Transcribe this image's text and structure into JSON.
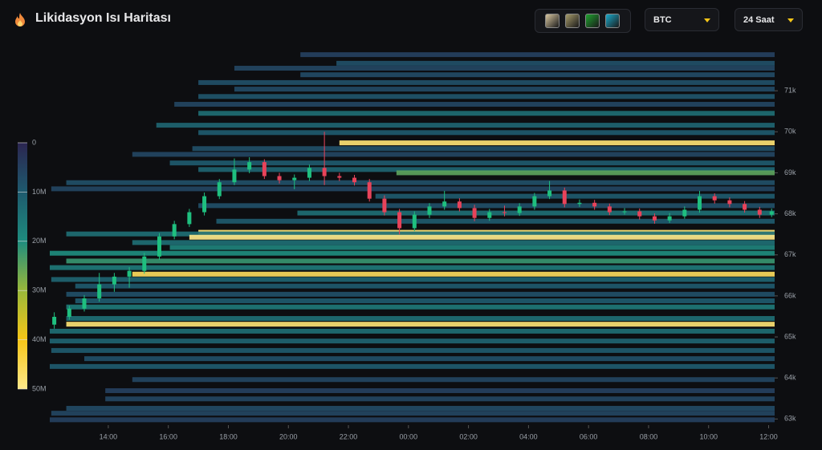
{
  "header": {
    "title": "Likidasyon Isı Haritası"
  },
  "controls": {
    "symbol": "BTC",
    "period": "24 Saat",
    "palettes": [
      "#d9c7a0",
      "#a69b6a",
      "#1fa12f",
      "#1aa8c9"
    ]
  },
  "chart_data": {
    "type": "liquidation-heatmap",
    "xlim": [
      12.05,
      36.2
    ],
    "xticks": [
      {
        "value": 14,
        "label": "14:00"
      },
      {
        "value": 16,
        "label": "16:00"
      },
      {
        "value": 18,
        "label": "18:00"
      },
      {
        "value": 20,
        "label": "20:00"
      },
      {
        "value": 22,
        "label": "22:00"
      },
      {
        "value": 24,
        "label": "00:00"
      },
      {
        "value": 26,
        "label": "02:00"
      },
      {
        "value": 28,
        "label": "04:00"
      },
      {
        "value": 30,
        "label": "06:00"
      },
      {
        "value": 32,
        "label": "08:00"
      },
      {
        "value": 34,
        "label": "10:00"
      },
      {
        "value": 36,
        "label": "12:00"
      }
    ],
    "ylim": [
      62850,
      72000
    ],
    "yticks": [
      {
        "value": 63000,
        "label": "63k"
      },
      {
        "value": 64000,
        "label": "64k"
      },
      {
        "value": 65000,
        "label": "65k"
      },
      {
        "value": 66000,
        "label": "66k"
      },
      {
        "value": 67000,
        "label": "67k"
      },
      {
        "value": 68000,
        "label": "68k"
      },
      {
        "value": 69000,
        "label": "69k"
      },
      {
        "value": 70000,
        "label": "70k"
      },
      {
        "value": 71000,
        "label": "71k"
      }
    ],
    "clim": [
      0,
      50000000
    ],
    "cticks": [
      0,
      {
        "value": 10000000,
        "label": "10M"
      },
      {
        "value": 20000000,
        "label": "20M"
      },
      {
        "value": 30000000,
        "label": "30M"
      },
      {
        "value": 40000000,
        "label": "40M"
      },
      {
        "value": 50000000,
        "label": "50M"
      }
    ],
    "colorscale": [
      "#2b2550",
      "#1e5a6e",
      "#1e8c7e",
      "#9ab83a",
      "#f5c518",
      "#fde88a"
    ],
    "up_color": "#1fbf7f",
    "down_color": "#e8435a",
    "bands": [
      {
        "price": 71880,
        "start": 20.4,
        "value": 5000000
      },
      {
        "price": 71670,
        "start": 21.6,
        "value": 8000000
      },
      {
        "price": 71550,
        "start": 18.2,
        "value": 6000000
      },
      {
        "price": 71390,
        "start": 20.4,
        "value": 7000000
      },
      {
        "price": 71200,
        "start": 17,
        "value": 8000000
      },
      {
        "price": 71040,
        "start": 18.2,
        "value": 7000000
      },
      {
        "price": 70860,
        "start": 17,
        "value": 9000000
      },
      {
        "price": 70670,
        "start": 16.2,
        "value": 6000000
      },
      {
        "price": 70450,
        "start": 17,
        "value": 14000000
      },
      {
        "price": 70160,
        "start": 15.6,
        "value": 12000000
      },
      {
        "price": 69980,
        "start": 17,
        "value": 10000000
      },
      {
        "price": 69730,
        "start": 21.7,
        "value": 48000000
      },
      {
        "price": 69590,
        "start": 16.8,
        "value": 8000000
      },
      {
        "price": 69450,
        "start": 14.8,
        "value": 6000000
      },
      {
        "price": 69240,
        "start": 16.05,
        "value": 10000000
      },
      {
        "price": 69080,
        "start": 17,
        "value": 12000000
      },
      {
        "price": 69000,
        "start": 23.6,
        "value": 25000000
      },
      {
        "price": 68760,
        "start": 12.6,
        "value": 8000000
      },
      {
        "price": 68610,
        "start": 12.1,
        "value": 6000000
      },
      {
        "price": 68430,
        "start": 22.9,
        "value": 10000000
      },
      {
        "price": 68200,
        "start": 17,
        "value": 8000000
      },
      {
        "price": 68020,
        "start": 20.3,
        "value": 14000000
      },
      {
        "price": 67820,
        "start": 17.6,
        "value": 10000000
      },
      {
        "price": 67550,
        "start": 17,
        "value": 48000000
      },
      {
        "price": 67510,
        "start": 12.6,
        "value": 14000000
      },
      {
        "price": 67430,
        "start": 16.7,
        "value": 50000000
      },
      {
        "price": 67300,
        "start": 14.8,
        "value": 14000000
      },
      {
        "price": 67180,
        "start": 16.05,
        "value": 18000000
      },
      {
        "price": 67040,
        "start": 12.05,
        "value": 20000000
      },
      {
        "price": 66850,
        "start": 12.6,
        "value": 22000000
      },
      {
        "price": 66690,
        "start": 12.05,
        "value": 16000000
      },
      {
        "price": 66530,
        "start": 14.8,
        "value": 46000000
      },
      {
        "price": 66400,
        "start": 12.1,
        "value": 12000000
      },
      {
        "price": 66240,
        "start": 12.9,
        "value": 10000000
      },
      {
        "price": 66040,
        "start": 12.6,
        "value": 8000000
      },
      {
        "price": 65880,
        "start": 12.9,
        "value": 10000000
      },
      {
        "price": 65730,
        "start": 12.6,
        "value": 16000000
      },
      {
        "price": 65310,
        "start": 12.6,
        "value": 48000000
      },
      {
        "price": 65450,
        "start": 12.6,
        "value": 14000000
      },
      {
        "price": 65140,
        "start": 12.05,
        "value": 14000000
      },
      {
        "price": 64900,
        "start": 12.05,
        "value": 12000000
      },
      {
        "price": 64670,
        "start": 12.1,
        "value": 10000000
      },
      {
        "price": 64470,
        "start": 13.2,
        "value": 8000000
      },
      {
        "price": 64280,
        "start": 12.05,
        "value": 10000000
      },
      {
        "price": 63960,
        "start": 14.8,
        "value": 6000000
      },
      {
        "price": 63690,
        "start": 13.9,
        "value": 5000000
      },
      {
        "price": 63490,
        "start": 13.9,
        "value": 6000000
      },
      {
        "price": 63260,
        "start": 12.6,
        "value": 7000000
      },
      {
        "price": 63140,
        "start": 12.1,
        "value": 6000000
      },
      {
        "price": 62980,
        "start": 12.05,
        "value": 5000000
      }
    ],
    "candles": [
      {
        "t": 12.2,
        "o": 65300,
        "h": 65600,
        "l": 65200,
        "c": 65490
      },
      {
        "t": 12.7,
        "o": 65490,
        "h": 65760,
        "l": 65420,
        "c": 65690
      },
      {
        "t": 13.2,
        "o": 65690,
        "h": 66020,
        "l": 65620,
        "c": 65940
      },
      {
        "t": 13.7,
        "o": 65940,
        "h": 66560,
        "l": 65860,
        "c": 66280
      },
      {
        "t": 14.2,
        "o": 66280,
        "h": 66560,
        "l": 66100,
        "c": 66470
      },
      {
        "t": 14.7,
        "o": 66470,
        "h": 66700,
        "l": 66200,
        "c": 66610
      },
      {
        "t": 15.2,
        "o": 66610,
        "h": 67050,
        "l": 66540,
        "c": 66960
      },
      {
        "t": 15.7,
        "o": 66960,
        "h": 67530,
        "l": 66880,
        "c": 67450
      },
      {
        "t": 16.2,
        "o": 67450,
        "h": 67830,
        "l": 67380,
        "c": 67750
      },
      {
        "t": 16.7,
        "o": 67750,
        "h": 68120,
        "l": 67680,
        "c": 68040
      },
      {
        "t": 17.2,
        "o": 68040,
        "h": 68520,
        "l": 67960,
        "c": 68430
      },
      {
        "t": 17.7,
        "o": 68430,
        "h": 68850,
        "l": 68360,
        "c": 68770
      },
      {
        "t": 18.2,
        "o": 68770,
        "h": 69350,
        "l": 68700,
        "c": 69080
      },
      {
        "t": 18.7,
        "o": 69080,
        "h": 69380,
        "l": 68990,
        "c": 69260
      },
      {
        "t": 19.2,
        "o": 69260,
        "h": 69330,
        "l": 68850,
        "c": 68920
      },
      {
        "t": 19.7,
        "o": 68920,
        "h": 69000,
        "l": 68740,
        "c": 68820
      },
      {
        "t": 20.2,
        "o": 68820,
        "h": 68960,
        "l": 68600,
        "c": 68880
      },
      {
        "t": 20.7,
        "o": 68880,
        "h": 69200,
        "l": 68800,
        "c": 69120
      },
      {
        "t": 21.2,
        "o": 69120,
        "h": 70000,
        "l": 68700,
        "c": 68920
      },
      {
        "t": 21.7,
        "o": 68920,
        "h": 69000,
        "l": 68800,
        "c": 68880
      },
      {
        "t": 22.2,
        "o": 68880,
        "h": 68950,
        "l": 68690,
        "c": 68770
      },
      {
        "t": 22.7,
        "o": 68770,
        "h": 68850,
        "l": 68300,
        "c": 68370
      },
      {
        "t": 23.2,
        "o": 68370,
        "h": 68450,
        "l": 67960,
        "c": 68040
      },
      {
        "t": 23.7,
        "o": 68040,
        "h": 68120,
        "l": 67500,
        "c": 67650
      },
      {
        "t": 24.2,
        "o": 67650,
        "h": 68060,
        "l": 67580,
        "c": 67980
      },
      {
        "t": 24.7,
        "o": 67980,
        "h": 68260,
        "l": 67900,
        "c": 68180
      },
      {
        "t": 25.2,
        "o": 68180,
        "h": 68560,
        "l": 68100,
        "c": 68300
      },
      {
        "t": 25.7,
        "o": 68300,
        "h": 68380,
        "l": 68060,
        "c": 68140
      },
      {
        "t": 26.2,
        "o": 68140,
        "h": 68220,
        "l": 67820,
        "c": 67900
      },
      {
        "t": 26.7,
        "o": 67900,
        "h": 68120,
        "l": 67830,
        "c": 68040
      },
      {
        "t": 27.2,
        "o": 68040,
        "h": 68200,
        "l": 67940,
        "c": 68020
      },
      {
        "t": 27.7,
        "o": 68020,
        "h": 68260,
        "l": 67950,
        "c": 68180
      },
      {
        "t": 28.2,
        "o": 68180,
        "h": 68510,
        "l": 68100,
        "c": 68430
      },
      {
        "t": 28.7,
        "o": 68430,
        "h": 68800,
        "l": 68360,
        "c": 68570
      },
      {
        "t": 29.2,
        "o": 68570,
        "h": 68640,
        "l": 68160,
        "c": 68240
      },
      {
        "t": 29.7,
        "o": 68240,
        "h": 68350,
        "l": 68170,
        "c": 68270
      },
      {
        "t": 30.2,
        "o": 68270,
        "h": 68340,
        "l": 68100,
        "c": 68180
      },
      {
        "t": 30.7,
        "o": 68180,
        "h": 68250,
        "l": 67970,
        "c": 68040
      },
      {
        "t": 31.2,
        "o": 68040,
        "h": 68140,
        "l": 67980,
        "c": 68060
      },
      {
        "t": 31.7,
        "o": 68060,
        "h": 68130,
        "l": 67860,
        "c": 67940
      },
      {
        "t": 32.2,
        "o": 67940,
        "h": 68010,
        "l": 67760,
        "c": 67840
      },
      {
        "t": 32.7,
        "o": 67840,
        "h": 68020,
        "l": 67780,
        "c": 67940
      },
      {
        "t": 33.2,
        "o": 67940,
        "h": 68180,
        "l": 67880,
        "c": 68100
      },
      {
        "t": 33.7,
        "o": 68100,
        "h": 68560,
        "l": 68030,
        "c": 68430
      },
      {
        "t": 34.2,
        "o": 68430,
        "h": 68500,
        "l": 68250,
        "c": 68330
      },
      {
        "t": 34.7,
        "o": 68330,
        "h": 68400,
        "l": 68160,
        "c": 68240
      },
      {
        "t": 35.2,
        "o": 68240,
        "h": 68310,
        "l": 68030,
        "c": 68100
      },
      {
        "t": 35.7,
        "o": 68100,
        "h": 68170,
        "l": 67900,
        "c": 67980
      },
      {
        "t": 36.1,
        "o": 67980,
        "h": 68130,
        "l": 67920,
        "c": 68060
      }
    ]
  }
}
